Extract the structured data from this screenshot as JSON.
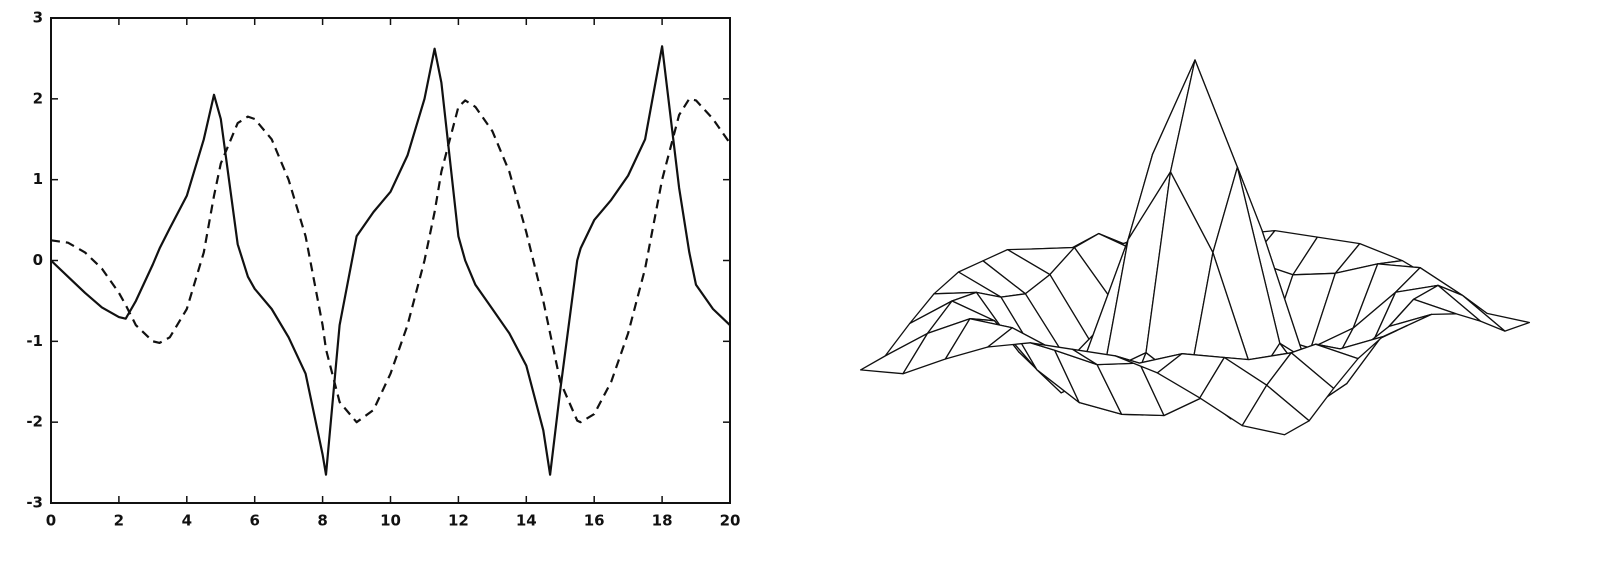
{
  "chart_data": [
    {
      "type": "line",
      "x": [
        0,
        0.5,
        1,
        1.5,
        2,
        2.2,
        2.5,
        3,
        3.2,
        3.5,
        4,
        4.5,
        4.8,
        5,
        5.5,
        5.8,
        6,
        6.5,
        7,
        7.5,
        8,
        8.1,
        8.5,
        9,
        9.5,
        10,
        10.5,
        11,
        11.3,
        11.5,
        12,
        12.2,
        12.5,
        13,
        13.5,
        14,
        14.5,
        14.7,
        15,
        15.5,
        15.6,
        16,
        16.5,
        17,
        17.5,
        18,
        18.5,
        18.8,
        19,
        19.5,
        20
      ],
      "series": [
        {
          "color": "#111111",
          "linestyle": "solid",
          "values": [
            0,
            -0.2,
            -0.4,
            -0.58,
            -0.7,
            -0.72,
            -0.5,
            -0.05,
            0.15,
            0.4,
            0.8,
            1.5,
            2.05,
            1.75,
            0.2,
            -0.2,
            -0.35,
            -0.6,
            -0.95,
            -1.4,
            -2.4,
            -2.65,
            -0.8,
            0.3,
            0.6,
            0.85,
            1.3,
            2.0,
            2.62,
            2.2,
            0.3,
            0.0,
            -0.3,
            -0.6,
            -0.9,
            -1.3,
            -2.1,
            -2.65,
            -1.6,
            0.0,
            0.15,
            0.5,
            0.75,
            1.05,
            1.5,
            2.65,
            0.9,
            0.1,
            -0.3,
            -0.6,
            -0.8
          ]
        },
        {
          "color": "#111111",
          "linestyle": "dashed",
          "values": [
            0.25,
            0.22,
            0.1,
            -0.1,
            -0.4,
            -0.55,
            -0.8,
            -1.0,
            -1.02,
            -0.95,
            -0.6,
            0.1,
            0.8,
            1.2,
            1.7,
            1.78,
            1.75,
            1.5,
            1.0,
            0.3,
            -0.8,
            -1.1,
            -1.75,
            -2.0,
            -1.85,
            -1.4,
            -0.8,
            0.0,
            0.6,
            1.1,
            1.9,
            1.98,
            1.9,
            1.6,
            1.1,
            0.35,
            -0.5,
            -0.9,
            -1.5,
            -1.98,
            -2.0,
            -1.9,
            -1.5,
            -0.9,
            -0.1,
            1.0,
            1.8,
            2.0,
            1.98,
            1.75,
            1.45
          ]
        }
      ],
      "xlim": [
        0,
        20
      ],
      "xticks": [
        0,
        2,
        4,
        6,
        8,
        10,
        12,
        14,
        16,
        18,
        20
      ],
      "ylim": [
        -3,
        3
      ],
      "yticks": [
        -3,
        -2,
        -1,
        0,
        1,
        2,
        3
      ],
      "grid": false
    },
    {
      "type": "surface",
      "color": "#111111",
      "x": [
        -8,
        -6.4,
        -4.8,
        -3.2,
        -1.6,
        0,
        1.6,
        3.2,
        4.8,
        6.4,
        8
      ],
      "y": [
        -8,
        -6.4,
        -4.8,
        -3.2,
        -1.6,
        0,
        1.6,
        3.2,
        4.8,
        6.4,
        8
      ],
      "z": [
        [
          -0.08,
          -0.07,
          0.01,
          0.08,
          0.12,
          0.12,
          0.12,
          0.08,
          0.01,
          -0.07,
          -0.08
        ],
        [
          -0.07,
          0.04,
          0.12,
          0.11,
          0.05,
          0.02,
          0.05,
          0.11,
          0.12,
          0.04,
          -0.07
        ],
        [
          0.01,
          0.12,
          0.07,
          -0.09,
          -0.19,
          -0.21,
          -0.19,
          -0.09,
          0.07,
          0.12,
          0.01
        ],
        [
          0.08,
          0.11,
          -0.09,
          -0.22,
          -0.12,
          -0.02,
          -0.12,
          -0.22,
          -0.09,
          0.11,
          0.08
        ],
        [
          0.12,
          0.05,
          -0.19,
          -0.12,
          0.34,
          0.62,
          0.34,
          -0.12,
          -0.19,
          0.05,
          0.12
        ],
        [
          0.12,
          0.02,
          -0.21,
          -0.02,
          0.62,
          1,
          0.62,
          -0.02,
          -0.21,
          0.02,
          0.12
        ],
        [
          0.12,
          0.05,
          -0.19,
          -0.12,
          0.34,
          0.62,
          0.34,
          -0.12,
          -0.19,
          0.05,
          0.12
        ],
        [
          0.08,
          0.11,
          -0.09,
          -0.22,
          -0.12,
          -0.02,
          -0.12,
          -0.22,
          -0.09,
          0.11,
          0.08
        ],
        [
          0.01,
          0.12,
          0.07,
          -0.09,
          -0.19,
          -0.21,
          -0.19,
          -0.09,
          0.07,
          0.12,
          0.01
        ],
        [
          -0.07,
          0.04,
          0.12,
          0.11,
          0.05,
          0.02,
          0.05,
          0.11,
          0.12,
          0.04,
          -0.07
        ],
        [
          -0.08,
          -0.07,
          0.01,
          0.08,
          0.12,
          0.12,
          0.12,
          0.08,
          0.01,
          -0.07,
          -0.08
        ]
      ]
    }
  ]
}
